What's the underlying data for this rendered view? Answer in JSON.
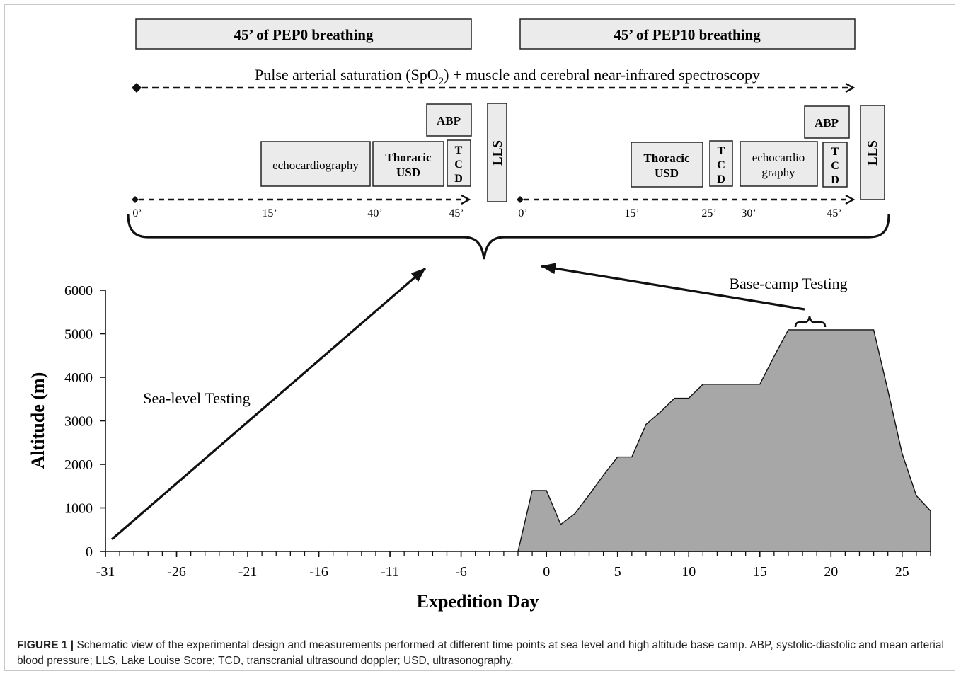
{
  "header_bars": {
    "pep0": "45’ of PEP0 breathing",
    "pep10": "45’ of PEP10 breathing"
  },
  "continuous_measure": {
    "prefix": "Pulse arterial saturation (SpO",
    "subscript": "2",
    "suffix": ") + muscle and cerebral near-infrared spectroscopy"
  },
  "sessions": {
    "left": {
      "boxes": {
        "echocardiography": "echocardiography",
        "thoracic_usd_1": "Thoracic",
        "thoracic_usd_2": "USD",
        "tcd": [
          "T",
          "C",
          "D"
        ],
        "abp": "ABP",
        "lls": "LLS"
      },
      "times": [
        "0’",
        "15’",
        "40’",
        "45’"
      ]
    },
    "right": {
      "boxes": {
        "thoracic_usd_1": "Thoracic",
        "thoracic_usd_2": "USD",
        "tcd_a": [
          "T",
          "C",
          "D"
        ],
        "echo_1": "echocardio",
        "echo_2": "graphy",
        "tcd_b": [
          "T",
          "C",
          "D"
        ],
        "abp": "ABP",
        "lls": "LLS"
      },
      "times": [
        "0’",
        "15’",
        "25’",
        "30’",
        "45’"
      ]
    }
  },
  "annotations": {
    "sea_level": "Sea-level Testing",
    "base_camp": "Base-camp Testing"
  },
  "chart_data": {
    "type": "area",
    "xlabel": "Expedition Day",
    "ylabel": "Altitude (m)",
    "xlim": [
      -31,
      27
    ],
    "ylim": [
      0,
      6000
    ],
    "x_ticks": [
      -31,
      -26,
      -21,
      -16,
      -11,
      -6,
      0,
      5,
      10,
      15,
      20,
      25
    ],
    "y_ticks": [
      0,
      1000,
      2000,
      3000,
      4000,
      5000,
      6000
    ],
    "series": [
      {
        "x": [
          -2,
          -1,
          0,
          1,
          2,
          3,
          4,
          5,
          6,
          7,
          8,
          9,
          10,
          11,
          12,
          13,
          14,
          15,
          16,
          17,
          18,
          19,
          20,
          21,
          22,
          23,
          24,
          25,
          26,
          27
        ],
        "y": [
          0,
          1400,
          1400,
          620,
          870,
          1300,
          1750,
          2170,
          2170,
          2920,
          3200,
          3520,
          3520,
          3840,
          3840,
          3840,
          3840,
          3840,
          4480,
          5090,
          5090,
          5090,
          5090,
          5090,
          5090,
          5090,
          3700,
          2250,
          1280,
          930
        ]
      }
    ],
    "fill_color": "#a7a7a7"
  },
  "caption": {
    "label": "FIGURE 1 |",
    "text": " Schematic view of the experimental design and measurements performed at different time points at sea level and high altitude base camp. ABP, systolic-diastolic and mean arterial blood pressure; LLS, Lake Louise Score; TCD, transcranial ultrasound doppler; USD, ultrasonography."
  }
}
